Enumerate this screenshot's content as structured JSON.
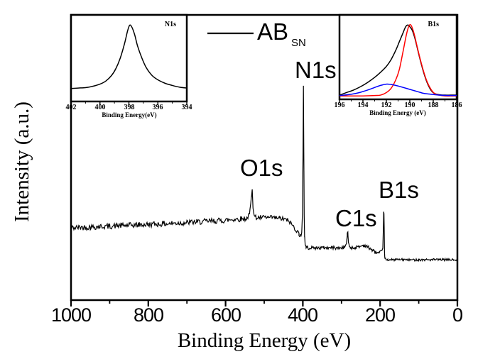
{
  "figure": {
    "legend": {
      "label_main": "AB",
      "label_sub": "SN"
    },
    "colors": {
      "axis": "#000000",
      "survey": "#000000",
      "envelope": "#000000",
      "red_fit": "#ff0000",
      "blue_fit": "#0000ff"
    }
  },
  "chart_data": [
    {
      "id": "survey",
      "type": "line",
      "xlabel": "Binding Energy (eV)",
      "ylabel": "Intensity (a.u.)",
      "xlim": [
        1000,
        0
      ],
      "x_axis_reversed": true,
      "grid": false,
      "legend": "AB_SN",
      "legend_position": "top-center",
      "x_ticks": [
        "1000",
        "800",
        "600",
        "400",
        "200",
        "0"
      ],
      "x_tick_values": [
        1000,
        800,
        600,
        400,
        200,
        0
      ],
      "peak_labels": [
        {
          "label": "O1s",
          "x": 531
        },
        {
          "label": "N1s",
          "x": 398
        },
        {
          "label": "C1s",
          "x": 285
        },
        {
          "label": "B1s",
          "x": 190
        }
      ],
      "series": [
        {
          "name": "AB_SN",
          "color": "#000000",
          "anchors": [
            [
              1000,
              0.253
            ],
            [
              975,
              0.255
            ],
            [
              950,
              0.256
            ],
            [
              925,
              0.258
            ],
            [
              900,
              0.259
            ],
            [
              875,
              0.261
            ],
            [
              850,
              0.262
            ],
            [
              825,
              0.264
            ],
            [
              800,
              0.265
            ],
            [
              775,
              0.267
            ],
            [
              750,
              0.268
            ],
            [
              725,
              0.27
            ],
            [
              700,
              0.272
            ],
            [
              675,
              0.274
            ],
            [
              650,
              0.276
            ],
            [
              625,
              0.278
            ],
            [
              600,
              0.28
            ],
            [
              580,
              0.283
            ],
            [
              560,
              0.285
            ],
            [
              545,
              0.287
            ],
            [
              538,
              0.3
            ],
            [
              533,
              0.36
            ],
            [
              531,
              0.395
            ],
            [
              529,
              0.33
            ],
            [
              526,
              0.295
            ],
            [
              520,
              0.288
            ],
            [
              510,
              0.289
            ],
            [
              500,
              0.29
            ],
            [
              490,
              0.289
            ],
            [
              480,
              0.289
            ],
            [
              470,
              0.288
            ],
            [
              460,
              0.287
            ],
            [
              450,
              0.284
            ],
            [
              440,
              0.28
            ],
            [
              432,
              0.272
            ],
            [
              424,
              0.258
            ],
            [
              416,
              0.243
            ],
            [
              410,
              0.232
            ],
            [
              406,
              0.228
            ],
            [
              403,
              0.232
            ],
            [
              401,
              0.3
            ],
            [
              399.5,
              0.52
            ],
            [
              398.5,
              0.75
            ],
            [
              397.5,
              0.52
            ],
            [
              396.5,
              0.3
            ],
            [
              395.5,
              0.225
            ],
            [
              394,
              0.195
            ],
            [
              392,
              0.188
            ],
            [
              389,
              0.184
            ],
            [
              385,
              0.183
            ],
            [
              375,
              0.183
            ],
            [
              365,
              0.183
            ],
            [
              355,
              0.183
            ],
            [
              345,
              0.184
            ],
            [
              335,
              0.183
            ],
            [
              325,
              0.185
            ],
            [
              315,
              0.183
            ],
            [
              305,
              0.182
            ],
            [
              295,
              0.185
            ],
            [
              290,
              0.19
            ],
            [
              287,
              0.198
            ],
            [
              285,
              0.23
            ],
            [
              283.5,
              0.235
            ],
            [
              282,
              0.205
            ],
            [
              280,
              0.19
            ],
            [
              277,
              0.185
            ],
            [
              270,
              0.183
            ],
            [
              262,
              0.185
            ],
            [
              254,
              0.187
            ],
            [
              250,
              0.189
            ],
            [
              246,
              0.191
            ],
            [
              242,
              0.192
            ],
            [
              238,
              0.19
            ],
            [
              234,
              0.187
            ],
            [
              230,
              0.185
            ],
            [
              226,
              0.181
            ],
            [
              222,
              0.177
            ],
            [
              218,
              0.173
            ],
            [
              214,
              0.169
            ],
            [
              210,
              0.167
            ],
            [
              206,
              0.165
            ],
            [
              202,
              0.165
            ],
            [
              198,
              0.168
            ],
            [
              195,
              0.172
            ],
            [
              193,
              0.185
            ],
            [
              191.8,
              0.24
            ],
            [
              190.8,
              0.31
            ],
            [
              190,
              0.3
            ],
            [
              189.3,
              0.24
            ],
            [
              188.6,
              0.17
            ],
            [
              188,
              0.148
            ],
            [
              186,
              0.144
            ],
            [
              184,
              0.143
            ],
            [
              180,
              0.142
            ],
            [
              170,
              0.141
            ],
            [
              160,
              0.142
            ],
            [
              150,
              0.142
            ],
            [
              140,
              0.142
            ],
            [
              130,
              0.141
            ],
            [
              120,
              0.141
            ],
            [
              110,
              0.141
            ],
            [
              100,
              0.142
            ],
            [
              90,
              0.141
            ],
            [
              80,
              0.142
            ],
            [
              70,
              0.141
            ],
            [
              60,
              0.142
            ],
            [
              50,
              0.141
            ],
            [
              40,
              0.142
            ],
            [
              30,
              0.141
            ],
            [
              20,
              0.142
            ],
            [
              10,
              0.141
            ],
            [
              0,
              0.141
            ]
          ]
        }
      ],
      "noise": [
        {
          "from": 1000,
          "to": 545,
          "amp": 0.01
        },
        {
          "from": 545,
          "to": 404,
          "amp": 0.008
        },
        {
          "from": 404,
          "to": 196,
          "amp": 0.006
        },
        {
          "from": 196,
          "to": 0,
          "amp": 0.004
        }
      ]
    },
    {
      "id": "inset-n1s",
      "type": "line",
      "label": "N1s",
      "xlabel": "Binding Energy(eV)",
      "xlim": [
        402,
        394
      ],
      "x_axis_reversed": true,
      "x_ticks": [
        "402",
        "400",
        "398",
        "396",
        "394"
      ],
      "x_tick_values": [
        402,
        400,
        398,
        396,
        394
      ],
      "peak_center_ev": 398,
      "series": [
        {
          "name": "N1s",
          "color": "#000000",
          "points": [
            [
              402,
              0.15
            ],
            [
              401.5,
              0.155
            ],
            [
              401,
              0.16
            ],
            [
              400.5,
              0.175
            ],
            [
              400,
              0.2
            ],
            [
              399.6,
              0.235
            ],
            [
              399.2,
              0.3
            ],
            [
              398.9,
              0.38
            ],
            [
              398.6,
              0.5
            ],
            [
              398.3,
              0.67
            ],
            [
              398.1,
              0.81
            ],
            [
              397.95,
              0.88
            ],
            [
              397.8,
              0.86
            ],
            [
              397.6,
              0.77
            ],
            [
              397.4,
              0.64
            ],
            [
              397.1,
              0.5
            ],
            [
              396.8,
              0.39
            ],
            [
              396.4,
              0.3
            ],
            [
              396,
              0.25
            ],
            [
              395.5,
              0.21
            ],
            [
              395,
              0.185
            ],
            [
              394.5,
              0.165
            ],
            [
              394,
              0.155
            ]
          ]
        }
      ]
    },
    {
      "id": "inset-b1s",
      "type": "line",
      "label": "B1s",
      "xlabel": "Binding Energy (eV)",
      "xlim": [
        196,
        186
      ],
      "x_axis_reversed": true,
      "x_ticks": [
        "196",
        "194",
        "192",
        "190",
        "188",
        "186"
      ],
      "x_tick_values": [
        196,
        194,
        192,
        190,
        188,
        186
      ],
      "peak_center_ev": 190,
      "series": [
        {
          "name": "black-curve",
          "color": "#000000",
          "points": [
            [
              196,
              0.05
            ],
            [
              195.4,
              0.08
            ],
            [
              194.8,
              0.11
            ],
            [
              194.2,
              0.15
            ],
            [
              193.6,
              0.2
            ],
            [
              193,
              0.26
            ],
            [
              192.5,
              0.32
            ],
            [
              192,
              0.39
            ],
            [
              191.6,
              0.47
            ],
            [
              191.2,
              0.58
            ],
            [
              190.9,
              0.68
            ],
            [
              190.6,
              0.78
            ],
            [
              190.35,
              0.86
            ],
            [
              190.15,
              0.88
            ],
            [
              190,
              0.86
            ],
            [
              189.8,
              0.82
            ],
            [
              189.6,
              0.74
            ],
            [
              189.4,
              0.63
            ],
            [
              189.1,
              0.46
            ],
            [
              188.8,
              0.31
            ],
            [
              188.5,
              0.19
            ],
            [
              188.2,
              0.11
            ],
            [
              187.9,
              0.07
            ],
            [
              187.5,
              0.055
            ],
            [
              187,
              0.05
            ],
            [
              186.5,
              0.05
            ],
            [
              186,
              0.05
            ]
          ]
        },
        {
          "name": "red-curve",
          "color": "#ff0000",
          "points": [
            [
              196,
              0.04
            ],
            [
              194,
              0.04
            ],
            [
              193,
              0.045
            ],
            [
              192.5,
              0.05
            ],
            [
              192,
              0.08
            ],
            [
              191.6,
              0.13
            ],
            [
              191.2,
              0.23
            ],
            [
              190.9,
              0.35
            ],
            [
              190.6,
              0.55
            ],
            [
              190.3,
              0.76
            ],
            [
              190.1,
              0.86
            ],
            [
              189.95,
              0.885
            ],
            [
              189.8,
              0.85
            ],
            [
              189.6,
              0.76
            ],
            [
              189.4,
              0.64
            ],
            [
              189.1,
              0.47
            ],
            [
              188.8,
              0.32
            ],
            [
              188.5,
              0.2
            ],
            [
              188.2,
              0.12
            ],
            [
              187.9,
              0.07
            ],
            [
              187.5,
              0.05
            ],
            [
              187,
              0.04
            ],
            [
              186,
              0.04
            ]
          ]
        },
        {
          "name": "blue-curve",
          "color": "#0000ff",
          "points": [
            [
              196,
              0.045
            ],
            [
              195,
              0.06
            ],
            [
              194.3,
              0.08
            ],
            [
              193.6,
              0.11
            ],
            [
              193,
              0.14
            ],
            [
              192.5,
              0.165
            ],
            [
              192,
              0.18
            ],
            [
              191.6,
              0.175
            ],
            [
              191.2,
              0.165
            ],
            [
              190.8,
              0.15
            ],
            [
              190.3,
              0.13
            ],
            [
              189.8,
              0.11
            ],
            [
              189.3,
              0.09
            ],
            [
              188.8,
              0.07
            ],
            [
              188.2,
              0.06
            ],
            [
              187.5,
              0.05
            ],
            [
              186.8,
              0.045
            ],
            [
              186,
              0.045
            ]
          ]
        }
      ]
    }
  ]
}
